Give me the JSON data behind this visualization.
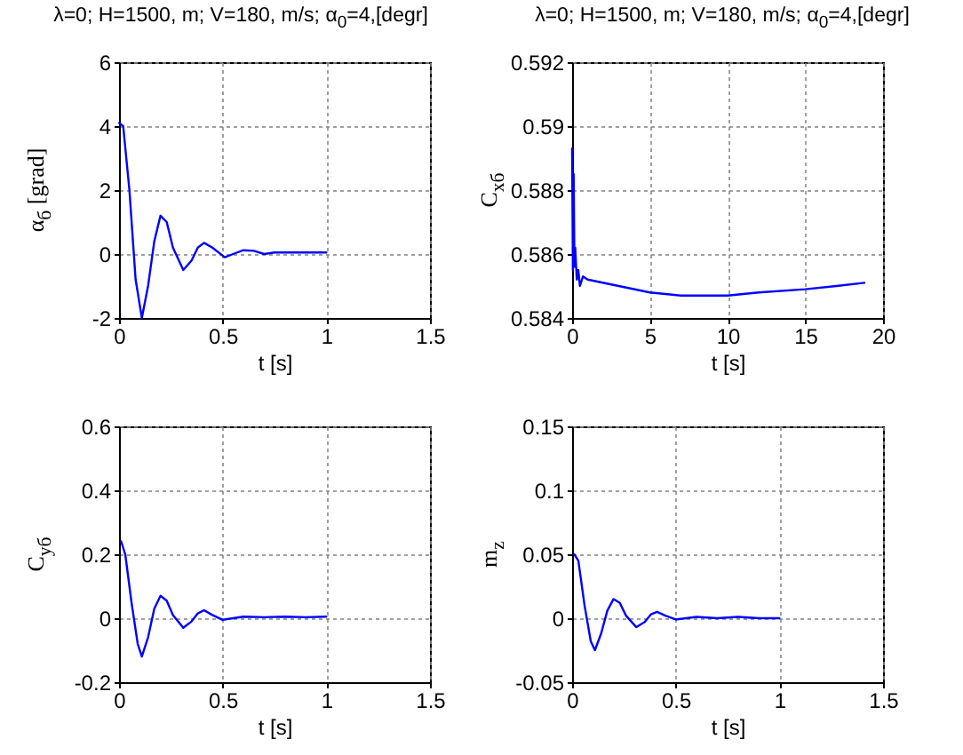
{
  "chart_data": [
    {
      "type": "line",
      "title": "λ=0; H=1500, m; V=180, m/s; α$_{0}$=4,[degr]",
      "xlabel": "t [s]",
      "ylabel": "α$_{б}$ [grad]",
      "xlim": [
        0,
        1.5
      ],
      "xticks": [
        0,
        0.5,
        1,
        1.5
      ],
      "ylim": [
        -2,
        6
      ],
      "yticks": [
        -2,
        0,
        2,
        4,
        6
      ],
      "grid": true,
      "series": [
        {
          "color": "#0000ff",
          "x": [
            0,
            0.02,
            0.05,
            0.08,
            0.11,
            0.14,
            0.17,
            0.2,
            0.23,
            0.26,
            0.31,
            0.35,
            0.38,
            0.41,
            0.45,
            0.51,
            0.55,
            0.6,
            0.65,
            0.7,
            0.75,
            0.8,
            0.9,
            1.0
          ],
          "values": [
            4.1,
            4.0,
            2.0,
            -0.8,
            -2.0,
            -1.0,
            0.4,
            1.2,
            1.0,
            0.2,
            -0.5,
            -0.2,
            0.2,
            0.35,
            0.2,
            -0.1,
            0.0,
            0.12,
            0.1,
            0.0,
            0.05,
            0.05,
            0.05,
            0.05
          ]
        }
      ]
    },
    {
      "type": "line",
      "title": "λ=0; H=1500, m; V=180, m/s; α$_{0}$=4,[degr]",
      "xlabel": "t [s]",
      "ylabel": "C$_{xб}$",
      "xlim": [
        0,
        20
      ],
      "xticks": [
        0,
        5,
        10,
        15,
        20
      ],
      "ylim": [
        0.584,
        0.592
      ],
      "yticks": [
        0.584,
        0.586,
        0.588,
        0.59,
        0.592
      ],
      "grid": true,
      "series": [
        {
          "color": "#0000ff",
          "x": [
            0,
            0.05,
            0.1,
            0.15,
            0.2,
            0.3,
            0.4,
            0.5,
            0.7,
            1,
            3,
            5,
            7,
            10,
            12,
            15,
            17,
            18.8
          ],
          "values": [
            0.5893,
            0.5855,
            0.5885,
            0.5856,
            0.5862,
            0.5852,
            0.5855,
            0.585,
            0.5853,
            0.5852,
            0.585,
            0.5848,
            0.5847,
            0.5847,
            0.5848,
            0.5849,
            0.585,
            0.5851
          ]
        }
      ]
    },
    {
      "type": "line",
      "xlabel": "t [s]",
      "ylabel": "C$_{yб}$",
      "xlim": [
        0,
        1.5
      ],
      "xticks": [
        0,
        0.5,
        1,
        1.5
      ],
      "ylim": [
        -0.2,
        0.6
      ],
      "yticks": [
        -0.2,
        0,
        0.2,
        0.4,
        0.6
      ],
      "grid": true,
      "series": [
        {
          "color": "#0000ff",
          "x": [
            0.01,
            0.03,
            0.06,
            0.09,
            0.11,
            0.14,
            0.17,
            0.2,
            0.23,
            0.26,
            0.31,
            0.35,
            0.38,
            0.41,
            0.45,
            0.5,
            0.55,
            0.6,
            0.7,
            0.8,
            0.9,
            1.0
          ],
          "values": [
            0.24,
            0.2,
            0.05,
            -0.08,
            -0.12,
            -0.06,
            0.03,
            0.07,
            0.055,
            0.01,
            -0.03,
            -0.01,
            0.015,
            0.025,
            0.01,
            -0.005,
            0.0,
            0.005,
            0.003,
            0.005,
            0.003,
            0.005
          ]
        }
      ]
    },
    {
      "type": "line",
      "xlabel": "t [s]",
      "ylabel": "m$_{z}$",
      "xlim": [
        0,
        1.5
      ],
      "xticks": [
        0,
        0.5,
        1,
        1.5
      ],
      "ylim": [
        -0.05,
        0.15
      ],
      "yticks": [
        -0.05,
        0,
        0.05,
        0.1,
        0.15
      ],
      "grid": true,
      "series": [
        {
          "color": "#0000ff",
          "x": [
            0.01,
            0.03,
            0.06,
            0.09,
            0.11,
            0.14,
            0.17,
            0.2,
            0.23,
            0.26,
            0.31,
            0.35,
            0.38,
            0.41,
            0.45,
            0.5,
            0.55,
            0.6,
            0.7,
            0.8,
            0.9,
            1.0
          ],
          "values": [
            0.05,
            0.045,
            0.01,
            -0.018,
            -0.025,
            -0.012,
            0.006,
            0.015,
            0.012,
            0.002,
            -0.007,
            -0.003,
            0.003,
            0.005,
            0.002,
            -0.001,
            0.0,
            0.001,
            0.0,
            0.001,
            0.0,
            0.0
          ]
        }
      ]
    }
  ]
}
